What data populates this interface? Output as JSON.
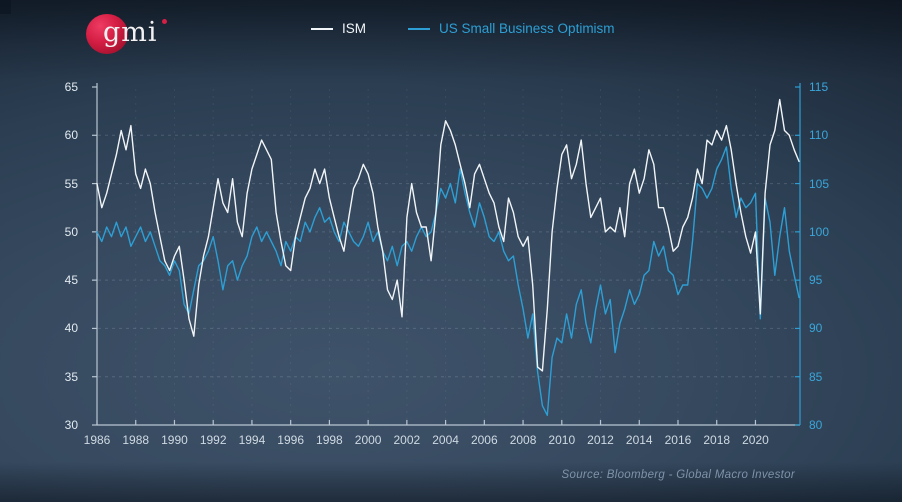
{
  "logo": {
    "text": "gmi"
  },
  "legend": [
    {
      "label": "ISM",
      "color": "#f2f5f8"
    },
    {
      "label": "US Small Business Optimism",
      "color": "#2d9fd4"
    }
  ],
  "source": "Source: Bloomberg - Global Macro Investor",
  "chart_data": {
    "type": "line",
    "x_start": 1986.0,
    "x_step": 0.25,
    "x_axis": {
      "range": [
        1986,
        2022.3
      ],
      "ticks": [
        1986,
        1988,
        1990,
        1992,
        1994,
        1996,
        1998,
        2000,
        2002,
        2004,
        2006,
        2008,
        2010,
        2012,
        2014,
        2016,
        2018,
        2020
      ],
      "color": "#cfd9e2"
    },
    "left_axis": {
      "range": [
        30,
        65
      ],
      "ticks": [
        65,
        60,
        55,
        50,
        45,
        40,
        35,
        30
      ],
      "color": "#e3eaf1",
      "axis_color": "#b9c6d2"
    },
    "right_axis": {
      "range": [
        80,
        115
      ],
      "ticks": [
        115,
        110,
        105,
        100,
        95,
        90,
        85,
        80
      ],
      "color": "#3aa6da",
      "axis_color": "#2d9fd4"
    },
    "grid": {
      "horizontal": true,
      "vertical": true,
      "style": "dashed"
    },
    "legend_position": "top",
    "series": [
      {
        "name": "US Small Business Optimism",
        "axis": "right",
        "color": "#2d9fd4",
        "values": [
          100.0,
          99.0,
          100.5,
          99.5,
          101.0,
          99.5,
          100.5,
          98.5,
          99.5,
          100.5,
          99.0,
          100.0,
          98.5,
          97.0,
          96.5,
          95.5,
          97.0,
          96.0,
          92.5,
          91.5,
          94.0,
          96.5,
          97.0,
          98.0,
          99.5,
          97.0,
          94.0,
          96.5,
          97.0,
          95.0,
          96.5,
          97.5,
          99.5,
          100.5,
          99.0,
          100.0,
          99.0,
          98.0,
          96.5,
          99.0,
          98.0,
          99.5,
          99.0,
          101.0,
          100.0,
          101.5,
          102.5,
          101.0,
          101.5,
          100.0,
          99.0,
          101.0,
          100.0,
          99.0,
          98.5,
          99.5,
          101.0,
          99.0,
          100.0,
          98.0,
          97.0,
          98.5,
          96.5,
          98.5,
          99.0,
          98.0,
          99.5,
          100.5,
          99.5,
          100.0,
          102.0,
          104.5,
          103.5,
          105.0,
          103.0,
          106.5,
          104.0,
          102.0,
          100.5,
          103.0,
          101.5,
          99.5,
          99.0,
          100.0,
          98.0,
          97.0,
          97.5,
          94.5,
          92.0,
          89.0,
          91.5,
          85.5,
          82.0,
          81.0,
          87.0,
          89.0,
          88.5,
          91.5,
          89.0,
          92.5,
          94.0,
          90.5,
          88.5,
          92.0,
          94.5,
          91.5,
          93.0,
          87.5,
          90.5,
          92.0,
          94.0,
          92.5,
          93.5,
          95.5,
          96.0,
          99.0,
          97.5,
          98.5,
          96.0,
          95.5,
          93.5,
          94.5,
          94.5,
          99.0,
          105.0,
          104.5,
          103.5,
          104.5,
          106.5,
          107.5,
          108.8,
          104.5,
          101.5,
          103.5,
          102.5,
          103.0,
          104.0,
          91.0,
          103.5,
          101.0,
          95.5,
          99.5,
          102.5,
          98.0,
          95.5,
          93.2
        ]
      },
      {
        "name": "ISM",
        "axis": "left",
        "color": "#f2f5f8",
        "values": [
          55.0,
          52.5,
          54.0,
          56.0,
          58.0,
          60.5,
          58.5,
          61.0,
          56.0,
          54.5,
          56.5,
          55.0,
          52.0,
          49.5,
          47.0,
          46.0,
          47.5,
          48.5,
          45.0,
          41.0,
          39.2,
          44.5,
          47.5,
          49.5,
          52.5,
          55.5,
          53.0,
          52.0,
          55.5,
          51.0,
          49.5,
          54.0,
          56.5,
          58.0,
          59.5,
          58.5,
          57.5,
          52.0,
          49.0,
          46.5,
          46.0,
          49.5,
          51.5,
          53.5,
          54.5,
          56.5,
          55.0,
          56.5,
          53.5,
          51.5,
          49.5,
          48.0,
          51.5,
          54.5,
          55.5,
          57.0,
          56.0,
          54.0,
          50.5,
          48.0,
          44.0,
          43.0,
          45.0,
          41.2,
          51.5,
          55.0,
          52.0,
          50.5,
          50.5,
          47.0,
          52.0,
          59.0,
          61.5,
          60.5,
          59.0,
          57.0,
          55.0,
          52.5,
          56.0,
          57.0,
          55.5,
          54.0,
          53.0,
          50.5,
          49.0,
          53.5,
          52.0,
          49.5,
          48.5,
          49.5,
          44.5,
          36.0,
          35.6,
          42.0,
          50.0,
          54.5,
          58.0,
          59.0,
          55.5,
          57.0,
          59.5,
          55.0,
          51.5,
          52.5,
          53.5,
          50.0,
          50.5,
          50.0,
          52.5,
          49.5,
          55.0,
          56.5,
          54.0,
          55.5,
          58.5,
          57.0,
          52.5,
          52.5,
          50.5,
          48.0,
          48.5,
          50.5,
          51.5,
          53.5,
          56.5,
          55.0,
          59.5,
          59.0,
          60.5,
          59.5,
          61.0,
          58.5,
          55.0,
          52.0,
          49.5,
          47.8,
          50.0,
          41.5,
          54.0,
          59.0,
          60.5,
          63.7,
          60.5,
          60.0,
          58.5,
          57.3
        ]
      }
    ]
  }
}
